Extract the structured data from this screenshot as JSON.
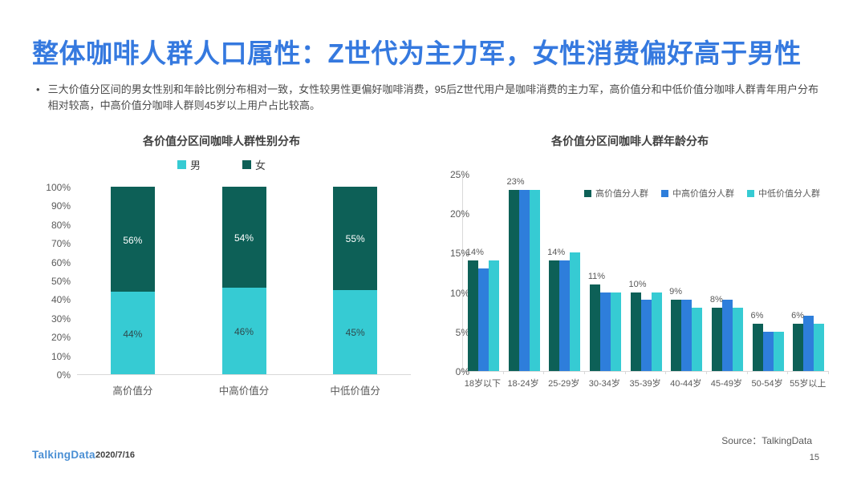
{
  "slide": {
    "title": "整体咖啡人群人口属性：Z世代为主力军，女性消费偏好高于男性",
    "bullet_marker": "•",
    "bullet": "三大价值分区间的男女性别和年龄比例分布相对一致，女性较男性更偏好咖啡消费，95后Z世代用户是咖啡消费的主力军，高价值分和中低价值分咖啡人群青年用户分布相对较高，中高价值分咖啡人群则45岁以上用户占比较高。",
    "footer": {
      "logo": "TalkingData",
      "date": "2020/7/16",
      "source": "Source：TalkingData",
      "page": "15"
    }
  },
  "colors": {
    "title_blue": "#3579DF",
    "dark_teal": "#0d6057",
    "mid_blue": "#2e7edb",
    "light_teal": "#36cbd3",
    "axis_text": "#595959",
    "male_label_text": "#2e4a4d",
    "female_label_text": "#ffffff"
  },
  "chart_data": [
    {
      "type": "bar",
      "variant": "stacked-column",
      "title": "各价值分区间咖啡人群性别分布",
      "categories": [
        "高价值分",
        "中高价值分",
        "中低价值分"
      ],
      "series": [
        {
          "name": "男",
          "color": "#36cbd3",
          "values": [
            44,
            46,
            45
          ]
        },
        {
          "name": "女",
          "color": "#0d6057",
          "values": [
            56,
            54,
            55
          ]
        }
      ],
      "data_labels": [
        [
          "44%",
          "46%",
          "45%"
        ],
        [
          "56%",
          "54%",
          "55%"
        ]
      ],
      "ylim": [
        0,
        100
      ],
      "ytick_step": 10,
      "legend_position": "top-center",
      "grid": false
    },
    {
      "type": "bar",
      "variant": "grouped-column",
      "title": "各价值分区间咖啡人群年龄分布",
      "categories": [
        "18岁以下",
        "18-24岁",
        "25-29岁",
        "30-34岁",
        "35-39岁",
        "40-44岁",
        "45-49岁",
        "50-54岁",
        "55岁以上"
      ],
      "series": [
        {
          "name": "高价值分人群",
          "color": "#0d6057",
          "values": [
            14,
            23,
            14,
            11,
            10,
            9,
            8,
            6,
            6
          ]
        },
        {
          "name": "中高价值分人群",
          "color": "#2e7edb",
          "values": [
            13,
            23,
            14,
            10,
            9,
            9,
            9,
            5,
            7
          ]
        },
        {
          "name": "中低价值分人群",
          "color": "#36cbd3",
          "values": [
            14,
            23,
            15,
            10,
            10,
            8,
            8,
            5,
            6
          ]
        }
      ],
      "group_labels": [
        "14%",
        "23%",
        "14%",
        "11%",
        "10%",
        "9%",
        "8%",
        "6%",
        "6%"
      ],
      "ylim": [
        0,
        25
      ],
      "ytick_step": 5,
      "legend_position": "top-right-inside",
      "grid": false
    }
  ]
}
